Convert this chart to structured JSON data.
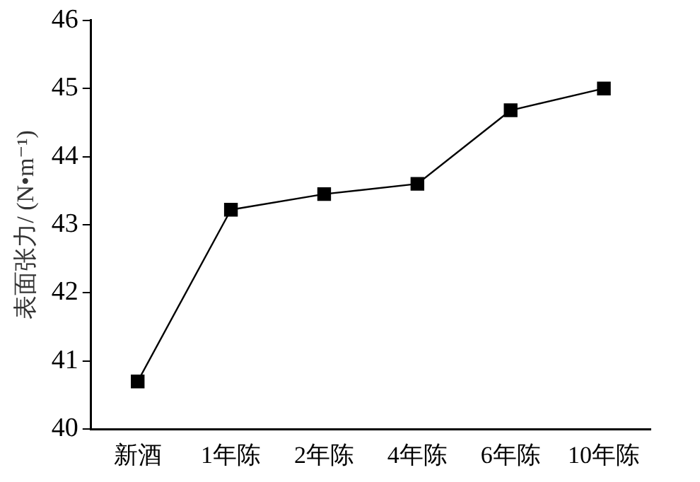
{
  "chart_data": {
    "type": "line",
    "ylabel": "表面张力/ (N•m⁻¹)",
    "categories": [
      "新酒",
      "1年陈",
      "2年陈",
      "4年陈",
      "6年陈",
      "10年陈"
    ],
    "series": [
      {
        "color": "#000000",
        "values": [
          40.7,
          43.22,
          43.45,
          43.6,
          44.68,
          45.0
        ]
      }
    ],
    "ylim": [
      40,
      46
    ],
    "yticks": [
      40,
      41,
      42,
      43,
      44,
      45,
      46
    ],
    "grid": false,
    "legend": false,
    "marker": "square",
    "line_style": "solid"
  }
}
